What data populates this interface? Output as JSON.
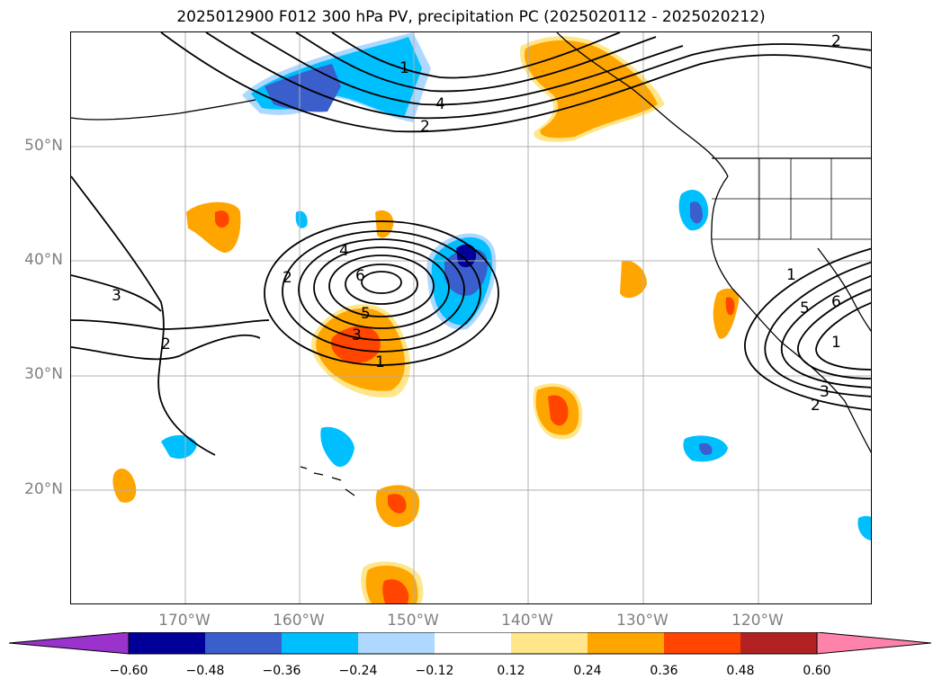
{
  "title": "2025012900 F012 300 hPa PV, precipitation PC (2025020112 - 2025020212)",
  "lat_labels": [
    "50°N",
    "40°N",
    "30°N",
    "20°N"
  ],
  "lon_labels": [
    "170°W",
    "160°W",
    "150°W",
    "140°W",
    "130°W",
    "120°W"
  ],
  "colorbar": {
    "colors": [
      "#9933cc",
      "#000099",
      "#3a5fcd",
      "#00bfff",
      "#add8ff",
      "#ffffff",
      "#ffe68a",
      "#ffa500",
      "#ff4500",
      "#b22222",
      "#ff82ab"
    ],
    "ticks": [
      "−0.60",
      "−0.48",
      "−0.36",
      "−0.24",
      "−0.12",
      "0.12",
      "0.24",
      "0.36",
      "0.48",
      "0.60"
    ]
  },
  "contour_labels": [
    "2",
    "1",
    "4",
    "2",
    "4",
    "2",
    "6",
    "5",
    "3",
    "1",
    "3",
    "2",
    "1",
    "5",
    "6",
    "1",
    "3",
    "2"
  ],
  "colors": {
    "orange": "#ffa500",
    "red": "#ff4500",
    "yellow": "#ffe68a",
    "cyan": "#00bfff",
    "blue": "#3a5fcd",
    "navy": "#000099",
    "lightblue": "#add8ff"
  }
}
